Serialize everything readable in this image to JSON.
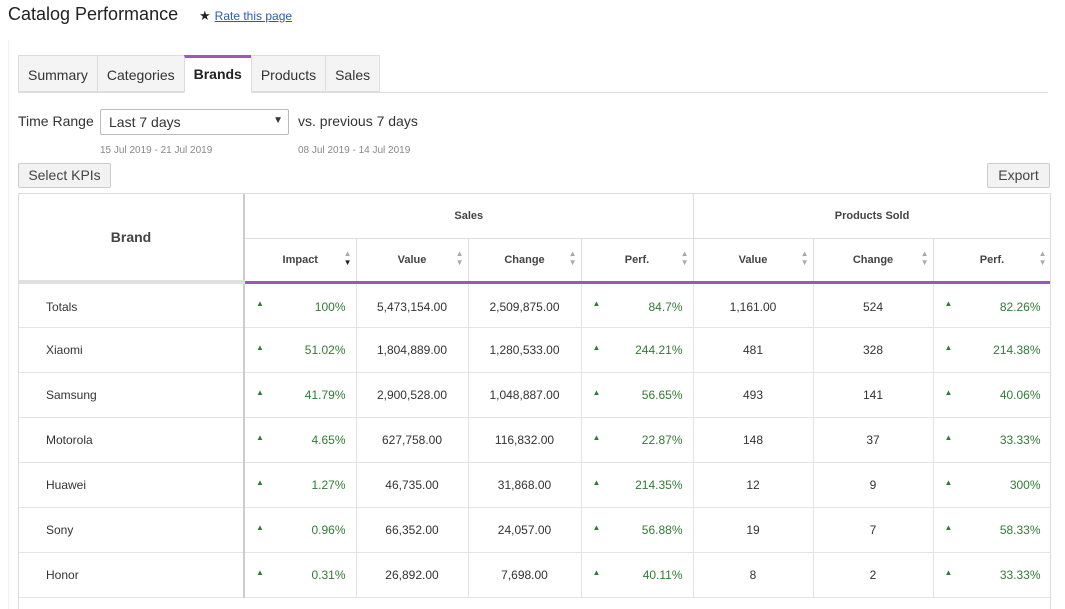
{
  "page": {
    "title": "Catalog Performance",
    "rate_label": "Rate this page"
  },
  "tabs": [
    "Summary",
    "Categories",
    "Brands",
    "Products",
    "Sales"
  ],
  "active_tab": "Brands",
  "time_range": {
    "label": "Time Range",
    "selected": "Last 7 days",
    "comparison": "vs. previous 7 days",
    "current_dates": "15 Jul 2019 - 21 Jul 2019",
    "previous_dates": "08 Jul 2019 - 14 Jul 2019"
  },
  "buttons": {
    "select_kpis": "Select KPIs",
    "export": "Export"
  },
  "table": {
    "brand_header": "Brand",
    "groups": [
      "Sales",
      "Products Sold"
    ],
    "columns": [
      "Impact",
      "Value",
      "Change",
      "Perf.",
      "Value",
      "Change",
      "Perf."
    ],
    "rows": [
      {
        "brand": "Totals",
        "impact": "100%",
        "sales_value": "5,473,154.00",
        "sales_change": "2,509,875.00",
        "sales_perf": "84.7%",
        "ps_value": "1,161.00",
        "ps_change": "524",
        "ps_perf": "82.26%"
      },
      {
        "brand": "Xiaomi",
        "impact": "51.02%",
        "sales_value": "1,804,889.00",
        "sales_change": "1,280,533.00",
        "sales_perf": "244.21%",
        "ps_value": "481",
        "ps_change": "328",
        "ps_perf": "214.38%"
      },
      {
        "brand": "Samsung",
        "impact": "41.79%",
        "sales_value": "2,900,528.00",
        "sales_change": "1,048,887.00",
        "sales_perf": "56.65%",
        "ps_value": "493",
        "ps_change": "141",
        "ps_perf": "40.06%"
      },
      {
        "brand": "Motorola",
        "impact": "4.65%",
        "sales_value": "627,758.00",
        "sales_change": "116,832.00",
        "sales_perf": "22.87%",
        "ps_value": "148",
        "ps_change": "37",
        "ps_perf": "33.33%"
      },
      {
        "brand": "Huawei",
        "impact": "1.27%",
        "sales_value": "46,735.00",
        "sales_change": "31,868.00",
        "sales_perf": "214.35%",
        "ps_value": "12",
        "ps_change": "9",
        "ps_perf": "300%"
      },
      {
        "brand": "Sony",
        "impact": "0.96%",
        "sales_value": "66,352.00",
        "sales_change": "24,057.00",
        "sales_perf": "56.88%",
        "ps_value": "19",
        "ps_change": "7",
        "ps_perf": "58.33%"
      },
      {
        "brand": "Honor",
        "impact": "0.31%",
        "sales_value": "26,892.00",
        "sales_change": "7,698.00",
        "sales_perf": "40.11%",
        "ps_value": "8",
        "ps_change": "2",
        "ps_perf": "33.33%"
      }
    ]
  },
  "colors": {
    "accent": "#9b59b6",
    "positive": "#2e7d32",
    "link": "#2a5db0"
  },
  "icons": {
    "rate": "star-icon",
    "trend": "arrow-up-icon",
    "sort": "sort-icon",
    "dropdown": "caret-down-icon"
  }
}
